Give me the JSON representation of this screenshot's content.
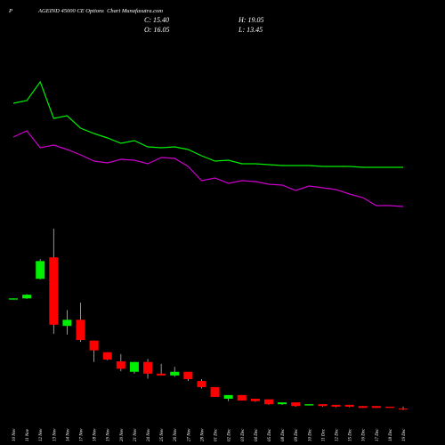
{
  "chart_data": {
    "type": "candlestick",
    "title": "P                  AGEIND 45000 CE Options  Chart Munafasutra.com",
    "stats": [
      "C: 15.40",
      "H: 19.05",
      "O: 16.05",
      "L: 13.45"
    ],
    "categories": [
      "10 Nov",
      "11 Nov",
      "12 Nov",
      "13 Nov",
      "14 Nov",
      "17 Nov",
      "18 Nov",
      "19 Nov",
      "20 Nov",
      "21 Nov",
      "24 Nov",
      "25 Nov",
      "26 Nov",
      "27 Nov",
      "28 Nov",
      "01 Dec",
      "02 Dec",
      "03 Dec",
      "04 Dec",
      "05 Dec",
      "08 Dec",
      "09 Dec",
      "10 Dec",
      "11 Dec",
      "12 Dec",
      "15 Dec",
      "16 Dec",
      "17 Dec",
      "18 Dec",
      "19 Dec"
    ],
    "open": [
      194,
      196,
      228,
      263,
      151,
      161,
      127,
      108,
      93,
      76,
      92,
      73,
      70,
      76,
      61,
      51,
      32,
      38,
      32,
      31,
      23,
      26,
      21,
      23,
      22,
      22,
      20,
      20,
      19,
      16.05
    ],
    "high": [
      196,
      203,
      260,
      310,
      177,
      189,
      127,
      108,
      105,
      92,
      97,
      89,
      84,
      76,
      64,
      51,
      38,
      38,
      32,
      31,
      26,
      26,
      23,
      23,
      22,
      22,
      20,
      20,
      19,
      19.05
    ],
    "low": [
      194,
      195,
      227,
      138,
      137,
      125,
      92,
      95,
      77,
      73,
      65,
      70,
      68,
      61,
      49,
      35,
      28,
      29,
      27,
      22,
      22,
      19,
      21,
      19,
      18,
      18,
      17,
      17,
      17,
      13.45
    ],
    "close": [
      196,
      202,
      257,
      153,
      161,
      128,
      111,
      96,
      81,
      92,
      73,
      70,
      76,
      64,
      51,
      35,
      38,
      29,
      28,
      23,
      26,
      20,
      23,
      20,
      19,
      19,
      17,
      17,
      17,
      15.4
    ],
    "up_color": "#00ee00",
    "down_color": "#ff0000",
    "ylim": [
      0,
      320
    ],
    "series": [
      {
        "color": "#00ee00",
        "axis": "y2",
        "values": [
          268,
          274,
          316,
          234,
          240,
          212,
          200,
          190,
          178,
          184,
          170,
          168,
          170,
          164,
          150,
          138,
          140,
          132,
          132,
          130,
          128,
          128,
          128,
          126,
          126,
          126,
          124,
          124,
          124,
          124
        ]
      },
      {
        "color": "#cc00cc",
        "axis": "y2",
        "values": [
          192,
          206,
          168,
          174,
          164,
          152,
          138,
          134,
          142,
          140,
          132,
          146,
          144,
          126,
          94,
          100,
          88,
          94,
          92,
          86,
          84,
          72,
          82,
          78,
          74,
          64,
          56,
          38,
          38,
          36
        ]
      }
    ],
    "y2lim": [
      0,
      400
    ]
  }
}
